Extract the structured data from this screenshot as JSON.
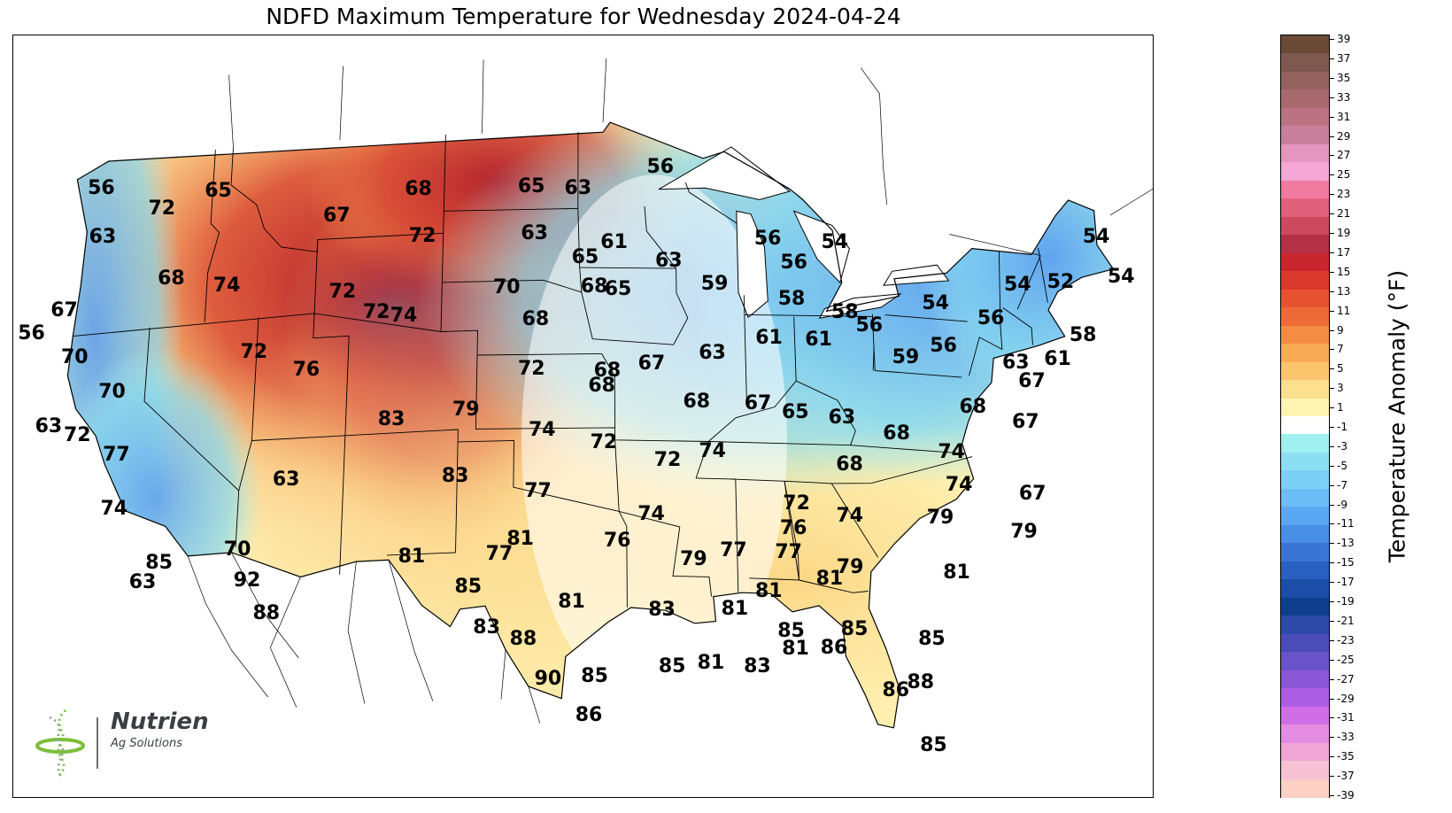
{
  "title": "NDFD Maximum Temperature for Wednesday 2024-04-24",
  "map": {
    "cities": [
      {
        "value": "56",
        "lon": -123.3,
        "lat": 47.9
      },
      {
        "value": "65",
        "lon": -116.7,
        "lat": 47.3
      },
      {
        "value": "72",
        "lon": -119.8,
        "lat": 46.8
      },
      {
        "value": "63",
        "lon": -123.0,
        "lat": 45.9
      },
      {
        "value": "67",
        "lon": -110.0,
        "lat": 45.9
      },
      {
        "value": "68",
        "lon": -105.5,
        "lat": 46.8
      },
      {
        "value": "65",
        "lon": -99.2,
        "lat": 46.8
      },
      {
        "value": "63",
        "lon": -96.6,
        "lat": 46.7
      },
      {
        "value": "56",
        "lon": -92.0,
        "lat": 47.6
      },
      {
        "value": "72",
        "lon": -105.2,
        "lat": 44.9
      },
      {
        "value": "63",
        "lon": -99.0,
        "lat": 44.9
      },
      {
        "value": "61",
        "lon": -94.6,
        "lat": 44.5
      },
      {
        "value": "68",
        "lon": -119.0,
        "lat": 43.9
      },
      {
        "value": "74",
        "lon": -115.9,
        "lat": 43.4
      },
      {
        "value": "67",
        "lon": -124.8,
        "lat": 43.1
      },
      {
        "value": "65",
        "lon": -96.2,
        "lat": 43.9
      },
      {
        "value": "63",
        "lon": -91.6,
        "lat": 43.8
      },
      {
        "value": "56",
        "lon": -86.1,
        "lat": 44.8
      },
      {
        "value": "56",
        "lon": -84.7,
        "lat": 43.9
      },
      {
        "value": "54",
        "lon": -82.4,
        "lat": 44.8
      },
      {
        "value": "72",
        "lon": -109.5,
        "lat": 42.8
      },
      {
        "value": "72",
        "lon": -107.6,
        "lat": 41.9
      },
      {
        "value": "74",
        "lon": -106.1,
        "lat": 41.7
      },
      {
        "value": "70",
        "lon": -100.5,
        "lat": 42.7
      },
      {
        "value": "56",
        "lon": -126.5,
        "lat": 42.3
      },
      {
        "value": "68",
        "lon": -95.7,
        "lat": 42.7
      },
      {
        "value": "65",
        "lon": -94.4,
        "lat": 42.6
      },
      {
        "value": "59",
        "lon": -89.1,
        "lat": 42.9
      },
      {
        "value": "58",
        "lon": -84.9,
        "lat": 42.4
      },
      {
        "value": "58",
        "lon": -82.0,
        "lat": 42.0
      },
      {
        "value": "70",
        "lon": -124.0,
        "lat": 41.1
      },
      {
        "value": "72",
        "lon": -114.2,
        "lat": 40.6
      },
      {
        "value": "68",
        "lon": -98.9,
        "lat": 41.4
      },
      {
        "value": "61",
        "lon": -86.2,
        "lat": 40.8
      },
      {
        "value": "61",
        "lon": -83.5,
        "lat": 40.8
      },
      {
        "value": "56",
        "lon": -80.7,
        "lat": 41.5
      },
      {
        "value": "70",
        "lon": -121.8,
        "lat": 39.5
      },
      {
        "value": "76",
        "lon": -111.3,
        "lat": 39.7
      },
      {
        "value": "72",
        "lon": -99.1,
        "lat": 39.4
      },
      {
        "value": "68",
        "lon": -95.0,
        "lat": 39.3
      },
      {
        "value": "67",
        "lon": -92.6,
        "lat": 39.6
      },
      {
        "value": "63",
        "lon": -89.3,
        "lat": 40.1
      },
      {
        "value": "59",
        "lon": -78.8,
        "lat": 40.3
      },
      {
        "value": "68",
        "lon": -95.3,
        "lat": 38.7
      },
      {
        "value": "63",
        "lon": -125.1,
        "lat": 38.4
      },
      {
        "value": "72",
        "lon": -123.5,
        "lat": 37.9
      },
      {
        "value": "83",
        "lon": -106.6,
        "lat": 37.5
      },
      {
        "value": "79",
        "lon": -102.6,
        "lat": 37.8
      },
      {
        "value": "68",
        "lon": -90.2,
        "lat": 38.1
      },
      {
        "value": "67",
        "lon": -86.9,
        "lat": 38.1
      },
      {
        "value": "65",
        "lon": -84.9,
        "lat": 37.8
      },
      {
        "value": "63",
        "lon": -82.4,
        "lat": 37.7
      },
      {
        "value": "68",
        "lon": -79.5,
        "lat": 37.2
      },
      {
        "value": "77",
        "lon": -121.3,
        "lat": 36.9
      },
      {
        "value": "74",
        "lon": -98.5,
        "lat": 36.9
      },
      {
        "value": "72",
        "lon": -95.2,
        "lat": 36.4
      },
      {
        "value": "72",
        "lon": -91.8,
        "lat": 35.7
      },
      {
        "value": "74",
        "lon": -89.4,
        "lat": 36.1
      },
      {
        "value": "68",
        "lon": -82.1,
        "lat": 35.8
      },
      {
        "value": "63",
        "lon": -112.1,
        "lat": 35.3
      },
      {
        "value": "83",
        "lon": -103.1,
        "lat": 35.1
      },
      {
        "value": "77",
        "lon": -98.7,
        "lat": 34.4
      },
      {
        "value": "74",
        "lon": -121.2,
        "lat": 34.7
      },
      {
        "value": "74",
        "lon": -92.7,
        "lat": 33.5
      },
      {
        "value": "72",
        "lon": -85.0,
        "lat": 34.1
      },
      {
        "value": "74",
        "lon": -82.2,
        "lat": 33.7
      },
      {
        "value": "76",
        "lon": -85.2,
        "lat": 33.1
      },
      {
        "value": "81",
        "lon": -99.6,
        "lat": 32.5
      },
      {
        "value": "76",
        "lon": -94.5,
        "lat": 32.4
      },
      {
        "value": "70",
        "lon": -114.5,
        "lat": 32.6
      },
      {
        "value": "85",
        "lon": -118.6,
        "lat": 32.3
      },
      {
        "value": "81",
        "lon": -105.3,
        "lat": 31.9
      },
      {
        "value": "77",
        "lon": -100.7,
        "lat": 31.9
      },
      {
        "value": "77",
        "lon": -88.4,
        "lat": 32.1
      },
      {
        "value": "77",
        "lon": -85.5,
        "lat": 32.1
      },
      {
        "value": "79",
        "lon": -90.5,
        "lat": 31.7
      },
      {
        "value": "63",
        "lon": -119.4,
        "lat": 31.6
      },
      {
        "value": "92",
        "lon": -113.9,
        "lat": 31.3
      },
      {
        "value": "85",
        "lon": -102.3,
        "lat": 30.6
      },
      {
        "value": "81",
        "lon": -86.6,
        "lat": 30.5
      },
      {
        "value": "81",
        "lon": -83.4,
        "lat": 31.1
      },
      {
        "value": "79",
        "lon": -82.3,
        "lat": 31.6
      },
      {
        "value": "88",
        "lon": -112.8,
        "lat": 29.9
      },
      {
        "value": "81",
        "lon": -96.9,
        "lat": 29.9
      },
      {
        "value": "83",
        "lon": -92.2,
        "lat": 29.6
      },
      {
        "value": "81",
        "lon": -88.4,
        "lat": 29.7
      },
      {
        "value": "83",
        "lon": -101.3,
        "lat": 28.9
      },
      {
        "value": "88",
        "lon": -99.4,
        "lat": 28.4
      },
      {
        "value": "85",
        "lon": -85.5,
        "lat": 28.9
      },
      {
        "value": "85",
        "lon": -82.2,
        "lat": 29.1
      },
      {
        "value": "81",
        "lon": -85.3,
        "lat": 28.2
      },
      {
        "value": "86",
        "lon": -83.3,
        "lat": 28.3
      },
      {
        "value": "81",
        "lon": -89.7,
        "lat": 27.5
      },
      {
        "value": "83",
        "lon": -87.3,
        "lat": 27.4
      },
      {
        "value": "85",
        "lon": -91.7,
        "lat": 27.3
      },
      {
        "value": "90",
        "lon": -98.1,
        "lat": 26.8
      },
      {
        "value": "85",
        "lon": -95.7,
        "lat": 26.9
      },
      {
        "value": "86",
        "lon": -96.0,
        "lat": 25.3
      },
      {
        "value": "54",
        "lon": -67.8,
        "lat": 46.0
      },
      {
        "value": "54",
        "lon": -66.6,
        "lat": 44.5
      },
      {
        "value": "52",
        "lon": -70.0,
        "lat": 44.0
      },
      {
        "value": "54",
        "lon": -72.4,
        "lat": 43.7
      },
      {
        "value": "58",
        "lon": -69.0,
        "lat": 41.9
      },
      {
        "value": "54",
        "lon": -77.0,
        "lat": 42.6
      },
      {
        "value": "56",
        "lon": -74.0,
        "lat": 42.2
      },
      {
        "value": "61",
        "lon": -70.5,
        "lat": 40.8
      },
      {
        "value": "56",
        "lon": -76.7,
        "lat": 40.9
      },
      {
        "value": "63",
        "lon": -72.8,
        "lat": 40.5
      },
      {
        "value": "67",
        "lon": -72.0,
        "lat": 39.8
      },
      {
        "value": "68",
        "lon": -75.3,
        "lat": 38.5
      },
      {
        "value": "67",
        "lon": -72.5,
        "lat": 38.1
      },
      {
        "value": "74",
        "lon": -76.6,
        "lat": 36.6
      },
      {
        "value": "74",
        "lon": -76.3,
        "lat": 35.3
      },
      {
        "value": "67",
        "lon": -72.4,
        "lat": 35.2
      },
      {
        "value": "79",
        "lon": -77.4,
        "lat": 33.9
      },
      {
        "value": "79",
        "lon": -73.0,
        "lat": 33.6
      },
      {
        "value": "81",
        "lon": -76.7,
        "lat": 31.7
      },
      {
        "value": "85",
        "lon": -78.2,
        "lat": 28.9
      },
      {
        "value": "88",
        "lon": -78.9,
        "lat": 27.1
      },
      {
        "value": "86",
        "lon": -80.2,
        "lat": 26.7
      },
      {
        "value": "85",
        "lon": -78.4,
        "lat": 24.6
      }
    ]
  },
  "logo": {
    "name": "Nutrien",
    "tagline": "Ag Solutions"
  },
  "colorbar": {
    "label": "Temperature Anomaly (°F)",
    "ticks": [
      "39",
      "37",
      "35",
      "33",
      "31",
      "29",
      "27",
      "25",
      "23",
      "21",
      "19",
      "17",
      "15",
      "13",
      "11",
      "9",
      "7",
      "5",
      "3",
      "1",
      "-1",
      "-3",
      "-5",
      "-7",
      "-9",
      "-11",
      "-13",
      "-15",
      "-17",
      "-19",
      "-21",
      "-23",
      "-25",
      "-27",
      "-29",
      "-31",
      "-33",
      "-35",
      "-37",
      "-39"
    ],
    "colors": [
      "#6b4a37",
      "#7f5850",
      "#94625f",
      "#a8696f",
      "#bb7383",
      "#c87f9a",
      "#e596be",
      "#f5a7d6",
      "#f07aa0",
      "#e0617c",
      "#cc4a5d",
      "#b43045",
      "#c8262e",
      "#d9392c",
      "#e6522f",
      "#ee6a38",
      "#f48c46",
      "#f9ab55",
      "#fbc56e",
      "#fde08e",
      "#fff4b1",
      "#ffffff",
      "#9ff0ee",
      "#8bdff0",
      "#7dd0f5",
      "#6dbef7",
      "#5aa7f4",
      "#4a8fe6",
      "#3a75d4",
      "#2a60c0",
      "#1c4ea8",
      "#0f3f8c",
      "#2d4aa8",
      "#4b4cb8",
      "#6a52c8",
      "#8a57d6",
      "#ab5ee2",
      "#d06ee8",
      "#e48be2",
      "#efa6d7",
      "#f6c1d2",
      "#fcd0c4"
    ]
  }
}
